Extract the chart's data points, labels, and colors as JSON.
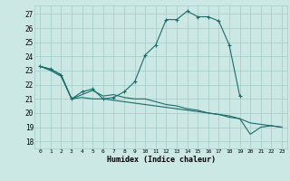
{
  "xlabel": "Humidex (Indice chaleur)",
  "bg_color": "#cce8e4",
  "grid_color": "#aacfcc",
  "line_color": "#1a6b6b",
  "xlim": [
    -0.5,
    23.5
  ],
  "ylim": [
    17.5,
    27.6
  ],
  "xticks": [
    0,
    1,
    2,
    3,
    4,
    5,
    6,
    7,
    8,
    9,
    10,
    11,
    12,
    13,
    14,
    15,
    16,
    17,
    18,
    19,
    20,
    21,
    22,
    23
  ],
  "yticks": [
    18,
    19,
    20,
    21,
    22,
    23,
    24,
    25,
    26,
    27
  ],
  "series": [
    {
      "x": [
        0,
        1,
        2,
        3,
        4,
        5,
        6,
        7,
        8,
        9,
        10,
        11,
        12,
        13,
        14,
        15,
        16,
        17,
        18,
        19
      ],
      "y": [
        23.3,
        23.1,
        22.7,
        21.0,
        21.5,
        21.7,
        21.0,
        21.1,
        21.5,
        22.2,
        24.1,
        24.8,
        26.6,
        26.6,
        27.2,
        26.8,
        26.8,
        26.5,
        24.8,
        21.2
      ],
      "marker": true
    },
    {
      "x": [
        0,
        1,
        2,
        3,
        4,
        5,
        6,
        7,
        8,
        9,
        10,
        11,
        12,
        13,
        14,
        15,
        16,
        17,
        18,
        19,
        20,
        21,
        22,
        23
      ],
      "y": [
        23.3,
        23.1,
        22.7,
        21.0,
        21.3,
        21.6,
        21.2,
        21.3,
        21.1,
        21.0,
        21.0,
        20.8,
        20.6,
        20.5,
        20.3,
        20.2,
        20.0,
        19.9,
        19.7,
        19.6,
        18.5,
        19.0,
        19.1,
        19.0
      ],
      "marker": false
    },
    {
      "x": [
        0,
        1,
        2,
        3,
        4,
        5,
        6,
        7,
        8,
        9,
        10,
        11,
        12,
        13,
        14,
        15,
        16,
        17,
        18,
        19,
        20,
        21,
        22,
        23
      ],
      "y": [
        23.3,
        23.0,
        22.6,
        21.0,
        21.1,
        21.0,
        21.0,
        20.9,
        20.8,
        20.7,
        20.6,
        20.5,
        20.4,
        20.3,
        20.2,
        20.1,
        20.0,
        19.9,
        19.8,
        19.6,
        19.3,
        19.2,
        19.1,
        19.0
      ],
      "marker": false
    }
  ]
}
